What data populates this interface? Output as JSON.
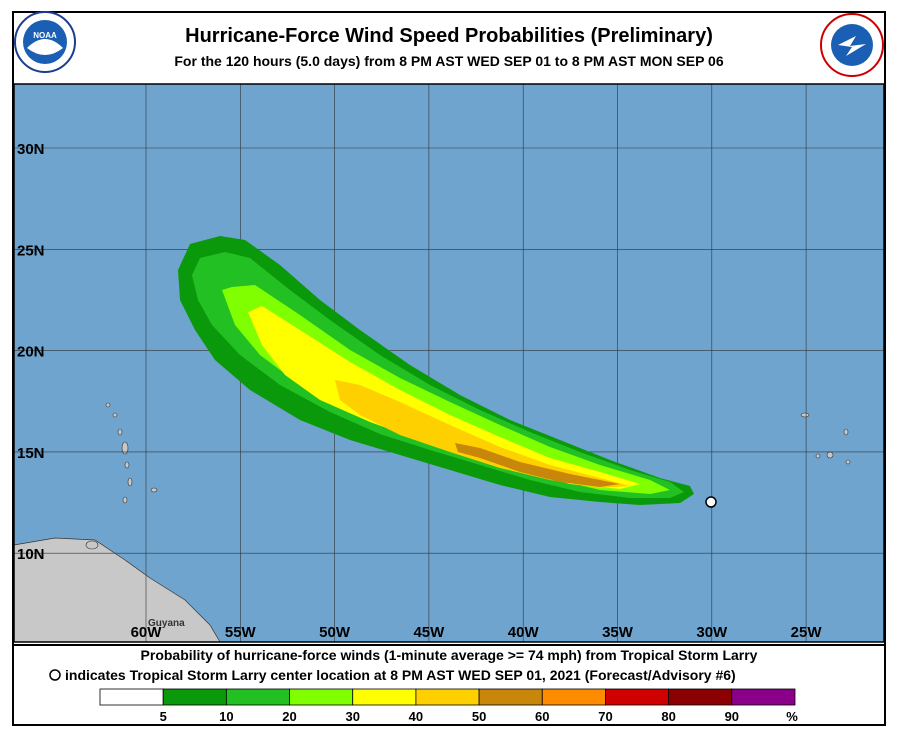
{
  "header": {
    "title": "Hurricane-Force Wind Speed Probabilities (Preliminary)",
    "subtitle": "For the 120 hours (5.0 days) from 8 PM AST WED SEP 01 to 8 PM AST MON SEP 06",
    "left_logo": "NOAA"
  },
  "map": {
    "lat_labels": [
      "30N",
      "25N",
      "20N",
      "15N",
      "10N"
    ],
    "lon_labels": [
      "60W",
      "55W",
      "50W",
      "45W",
      "40W",
      "35W",
      "30W",
      "25W"
    ],
    "place_labels": [
      "Guyana"
    ]
  },
  "caption": {
    "line1": "Probability of hurricane-force winds (1-minute average >= 74 mph) from Tropical Storm Larry",
    "line2": "indicates Tropical Storm Larry center location at 8 PM AST WED SEP 01, 2021 (Forecast/Advisory #6)"
  },
  "legend": {
    "colors": [
      "#ffffff",
      "#0a990a",
      "#22c022",
      "#80ff00",
      "#ffff00",
      "#ffd000",
      "#c8860a",
      "#ff8c00",
      "#d00000",
      "#8b0000",
      "#8b008b"
    ],
    "labels": [
      "5",
      "10",
      "20",
      "30",
      "40",
      "50",
      "60",
      "70",
      "80",
      "90"
    ],
    "unit": "%"
  }
}
